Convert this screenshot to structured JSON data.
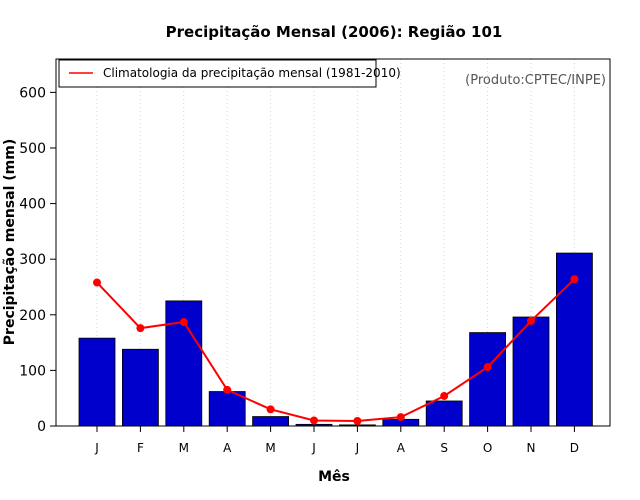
{
  "chart_data": {
    "type": "bar",
    "title": "Precipitação Mensal (2006): Região 101",
    "xlabel": "Mês",
    "ylabel": "Precipitação mensal (mm)",
    "ylim": [
      0,
      660
    ],
    "yticks": [
      0,
      100,
      200,
      300,
      400,
      500,
      600
    ],
    "categories": [
      "J",
      "F",
      "M",
      "A",
      "M",
      "J",
      "J",
      "A",
      "S",
      "O",
      "N",
      "D"
    ],
    "series": [
      {
        "name": "Precipitação mensal 2006",
        "type": "bar",
        "color": "#0000CD",
        "values": [
          158,
          138,
          225,
          62,
          17,
          3,
          2,
          12,
          45,
          168,
          196,
          311
        ]
      },
      {
        "name": "Climatologia da precipitação mensal (1981-2010)",
        "type": "line",
        "color": "#FF0000",
        "values": [
          258,
          176,
          187,
          65,
          30,
          10,
          9,
          16,
          54,
          106,
          189,
          264
        ]
      }
    ],
    "legend": {
      "position": "top-left",
      "entries": [
        "Climatologia da precipitação mensal (1981-2010)"
      ]
    },
    "grid": "vertical dotted",
    "annotation": "(Produto:CPTEC/INPE)"
  }
}
